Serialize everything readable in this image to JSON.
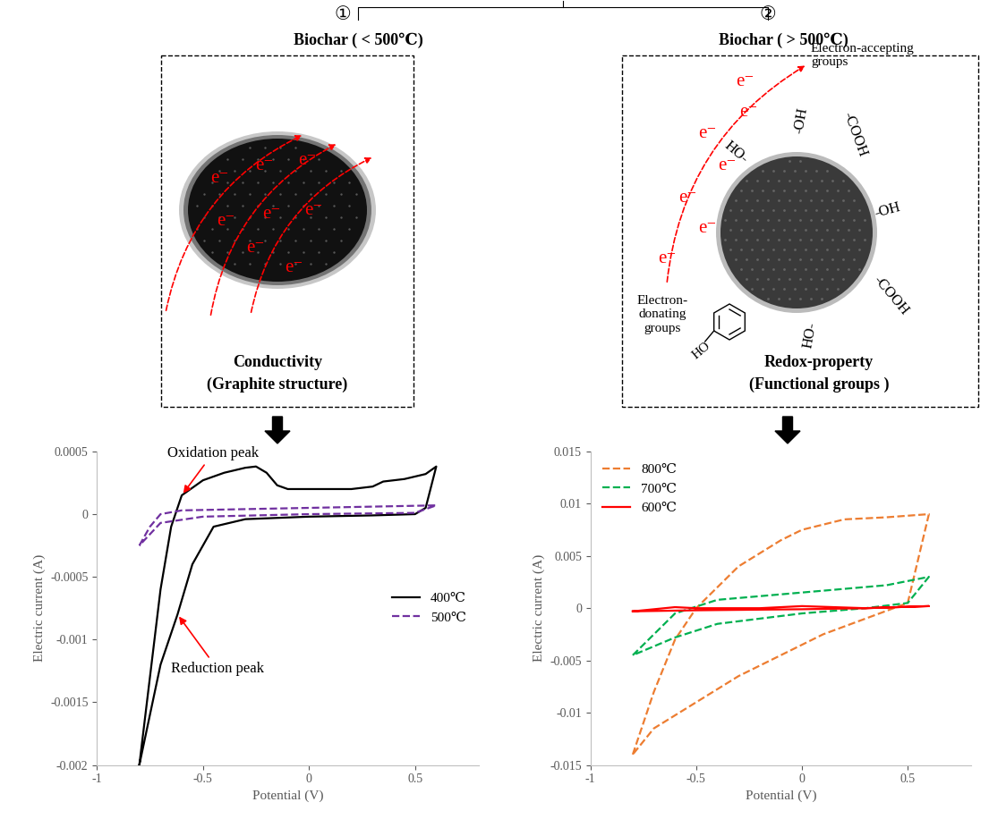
{
  "diagram": {
    "panels": [
      {
        "number": "①",
        "title": "Biochar ( < 500℃)",
        "caption": "Conductivity",
        "subcaption": "(Graphite structure)",
        "electron_label": "e⁻"
      },
      {
        "number": "②",
        "title": "Biochar ( > 500℃)",
        "caption": "Redox-property",
        "subcaption": "(Functional groups )",
        "electron_label": "e⁻",
        "accepting_label": "Electron-accepting\ngroups",
        "donating_label": "Electron-\ndonating\ngroups",
        "functional_groups": [
          "HO-",
          "-OH",
          "-COOH",
          "-OH",
          "-COOH",
          "HO-"
        ],
        "phenol_label": "HO"
      }
    ]
  },
  "chart_data": [
    {
      "type": "line",
      "xlabel": "Potential (V)",
      "ylabel": "Electric current (A)",
      "xlim": [
        -1,
        0.8
      ],
      "xticks": [
        -1,
        -0.5,
        0,
        0.5
      ],
      "ylim": [
        -0.002,
        0.0005
      ],
      "yticks": [
        -0.002,
        -0.0015,
        -0.001,
        -0.0005,
        0,
        0.0005
      ],
      "legend": "center right",
      "series": [
        {
          "name": "400℃",
          "color": "#000000",
          "line_style": "solid",
          "x": [
            -0.8,
            -0.75,
            -0.7,
            -0.65,
            -0.6,
            -0.5,
            -0.4,
            -0.3,
            -0.25,
            -0.2,
            -0.15,
            -0.1,
            0,
            0.2,
            0.3,
            0.35,
            0.45,
            0.55,
            0.6,
            0.55,
            0.5,
            0.3,
            0,
            -0.3,
            -0.45,
            -0.55,
            -0.62,
            -0.7,
            -0.75,
            -0.8
          ],
          "values": [
            -0.002,
            -0.0013,
            -0.0006,
            -0.0001,
            0.00015,
            0.00027,
            0.00033,
            0.00037,
            0.00038,
            0.00033,
            0.00023,
            0.0002,
            0.0002,
            0.0002,
            0.00022,
            0.00026,
            0.00028,
            0.00032,
            0.00038,
            5e-05,
            0,
            -1e-05,
            -2e-05,
            -4e-05,
            -0.0001,
            -0.0004,
            -0.0008,
            -0.0012,
            -0.0016,
            -0.002
          ]
        },
        {
          "name": "500℃",
          "color": "#7030a0",
          "line_style": "dashed",
          "x": [
            -0.8,
            -0.75,
            -0.7,
            -0.6,
            0,
            0.6,
            0.5,
            0,
            -0.5,
            -0.7,
            -0.8
          ],
          "values": [
            -0.00025,
            -0.0001,
            0,
            3e-05,
            5e-05,
            7e-05,
            1e-05,
            0,
            -2e-05,
            -7e-05,
            -0.00025
          ]
        }
      ],
      "annotations": [
        {
          "text": "Oxidation peak",
          "x": -0.6,
          "y": 0.00015
        },
        {
          "text": "Reduction peak",
          "x": -0.62,
          "y": -0.0008
        }
      ]
    },
    {
      "type": "line",
      "xlabel": "Potential (V)",
      "ylabel": "Electric current (A)",
      "xlim": [
        -1,
        0.8
      ],
      "xticks": [
        -1,
        -0.5,
        0,
        0.5
      ],
      "ylim": [
        -0.015,
        0.015
      ],
      "yticks": [
        -0.015,
        -0.01,
        -0.005,
        0,
        0.005,
        0.01,
        0.015
      ],
      "legend": "upper left",
      "series": [
        {
          "name": "800℃",
          "color": "#ed7d31",
          "line_style": "dashed",
          "x": [
            -0.8,
            -0.7,
            -0.6,
            -0.5,
            -0.3,
            -0.1,
            0,
            0.2,
            0.4,
            0.6,
            0.5,
            0.3,
            0.1,
            -0.1,
            -0.3,
            -0.5,
            -0.7,
            -0.8
          ],
          "values": [
            -0.014,
            -0.008,
            -0.003,
            0,
            0.004,
            0.0065,
            0.0075,
            0.0085,
            0.0087,
            0.009,
            0.0005,
            -0.001,
            -0.0025,
            -0.0045,
            -0.0065,
            -0.009,
            -0.0115,
            -0.014
          ]
        },
        {
          "name": "700℃",
          "color": "#00b050",
          "line_style": "dashed",
          "x": [
            -0.8,
            -0.6,
            -0.4,
            0,
            0.4,
            0.6,
            0.5,
            0.3,
            0,
            -0.4,
            -0.6,
            -0.8
          ],
          "values": [
            -0.0045,
            -0.0005,
            0.0008,
            0.0015,
            0.0022,
            0.003,
            0.0005,
            0,
            -0.0005,
            -0.0015,
            -0.0028,
            -0.0045
          ]
        },
        {
          "name": "600℃",
          "color": "#ff0000",
          "line_style": "solid",
          "x": [
            -0.8,
            -0.6,
            -0.5,
            -0.2,
            0,
            0.3,
            0.6,
            0.3,
            0,
            -0.5,
            -0.8
          ],
          "values": [
            -0.0003,
            0.0001,
            0,
            0,
            0.0002,
            0,
            0.0002,
            0,
            -0.0001,
            -0.0002,
            -0.0003
          ]
        }
      ]
    }
  ]
}
